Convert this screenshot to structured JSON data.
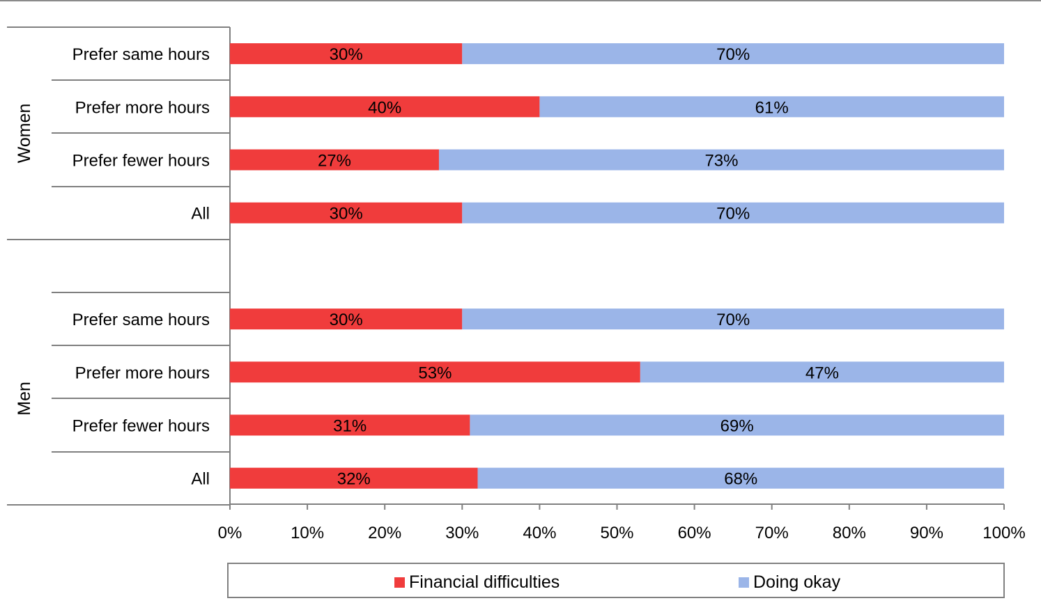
{
  "chart_data": {
    "type": "bar",
    "orientation": "horizontal",
    "stacked": true,
    "groups": [
      {
        "name": "Women",
        "categories": [
          "Prefer same hours",
          "Prefer more hours",
          "Prefer fewer hours",
          "All"
        ]
      },
      {
        "name": "Men",
        "categories": [
          "Prefer same hours",
          "Prefer more hours",
          "Prefer fewer hours",
          "All"
        ]
      }
    ],
    "series": [
      {
        "name": "Financial difficulties",
        "color": "#f03c3c",
        "values": [
          30,
          40,
          27,
          30,
          30,
          53,
          31,
          32
        ],
        "labels": [
          "30%",
          "40%",
          "27%",
          "30%",
          "30%",
          "53%",
          "31%",
          "32%"
        ]
      },
      {
        "name": "Doing okay",
        "color": "#9bb5e8",
        "values": [
          70,
          61,
          73,
          70,
          70,
          47,
          69,
          68
        ],
        "labels": [
          "70%",
          "61%",
          "73%",
          "70%",
          "70%",
          "47%",
          "69%",
          "68%"
        ]
      }
    ],
    "xlim": [
      0,
      100
    ],
    "x_ticks": [
      "0%",
      "10%",
      "20%",
      "30%",
      "40%",
      "50%",
      "60%",
      "70%",
      "80%",
      "90%",
      "100%"
    ],
    "grid": false,
    "legend_position": "bottom"
  }
}
